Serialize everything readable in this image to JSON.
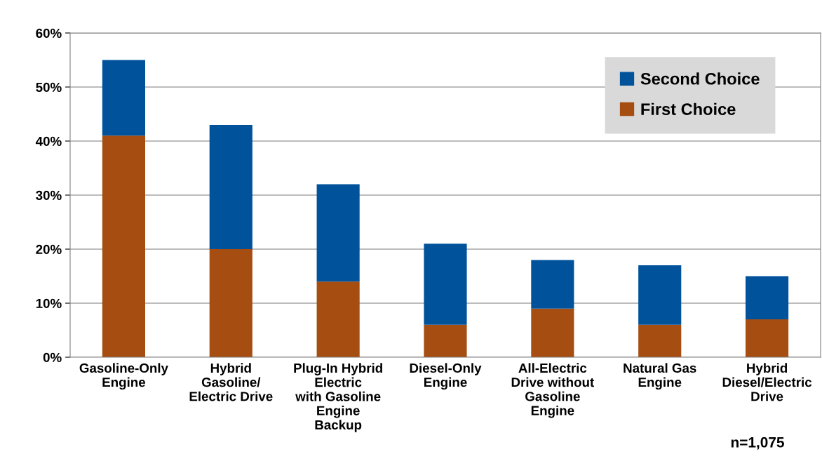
{
  "chart_data": {
    "type": "bar",
    "stacked": true,
    "categories": [
      "Gasoline-Only\nEngine",
      "Hybrid\nGasoline/\nElectric Drive",
      "Plug-In Hybrid\nElectric\nwith Gasoline\nEngine\nBackup",
      "Diesel-Only\nEngine",
      "All-Electric\nDrive without\nGasoline\nEngine",
      "Natural Gas\nEngine",
      "Hybrid\nDiesel/Electric\nDrive"
    ],
    "series": [
      {
        "name": "First Choice",
        "color": "#a64d12",
        "values": [
          41,
          20,
          14,
          6,
          9,
          6,
          7
        ]
      },
      {
        "name": "Second Choice",
        "color": "#00529b",
        "values": [
          14,
          23,
          18,
          15,
          9,
          11,
          8
        ]
      }
    ],
    "ylim": [
      0,
      60
    ],
    "yticks": [
      {
        "value": 0,
        "label": "0%"
      },
      {
        "value": 10,
        "label": "10%"
      },
      {
        "value": 20,
        "label": "20%"
      },
      {
        "value": 30,
        "label": "30%"
      },
      {
        "value": 40,
        "label": "40%"
      },
      {
        "value": 50,
        "label": "50%"
      },
      {
        "value": 60,
        "label": "60%"
      }
    ],
    "grid": "y",
    "legend": "top right",
    "annotations": [
      "n=1,075"
    ]
  }
}
